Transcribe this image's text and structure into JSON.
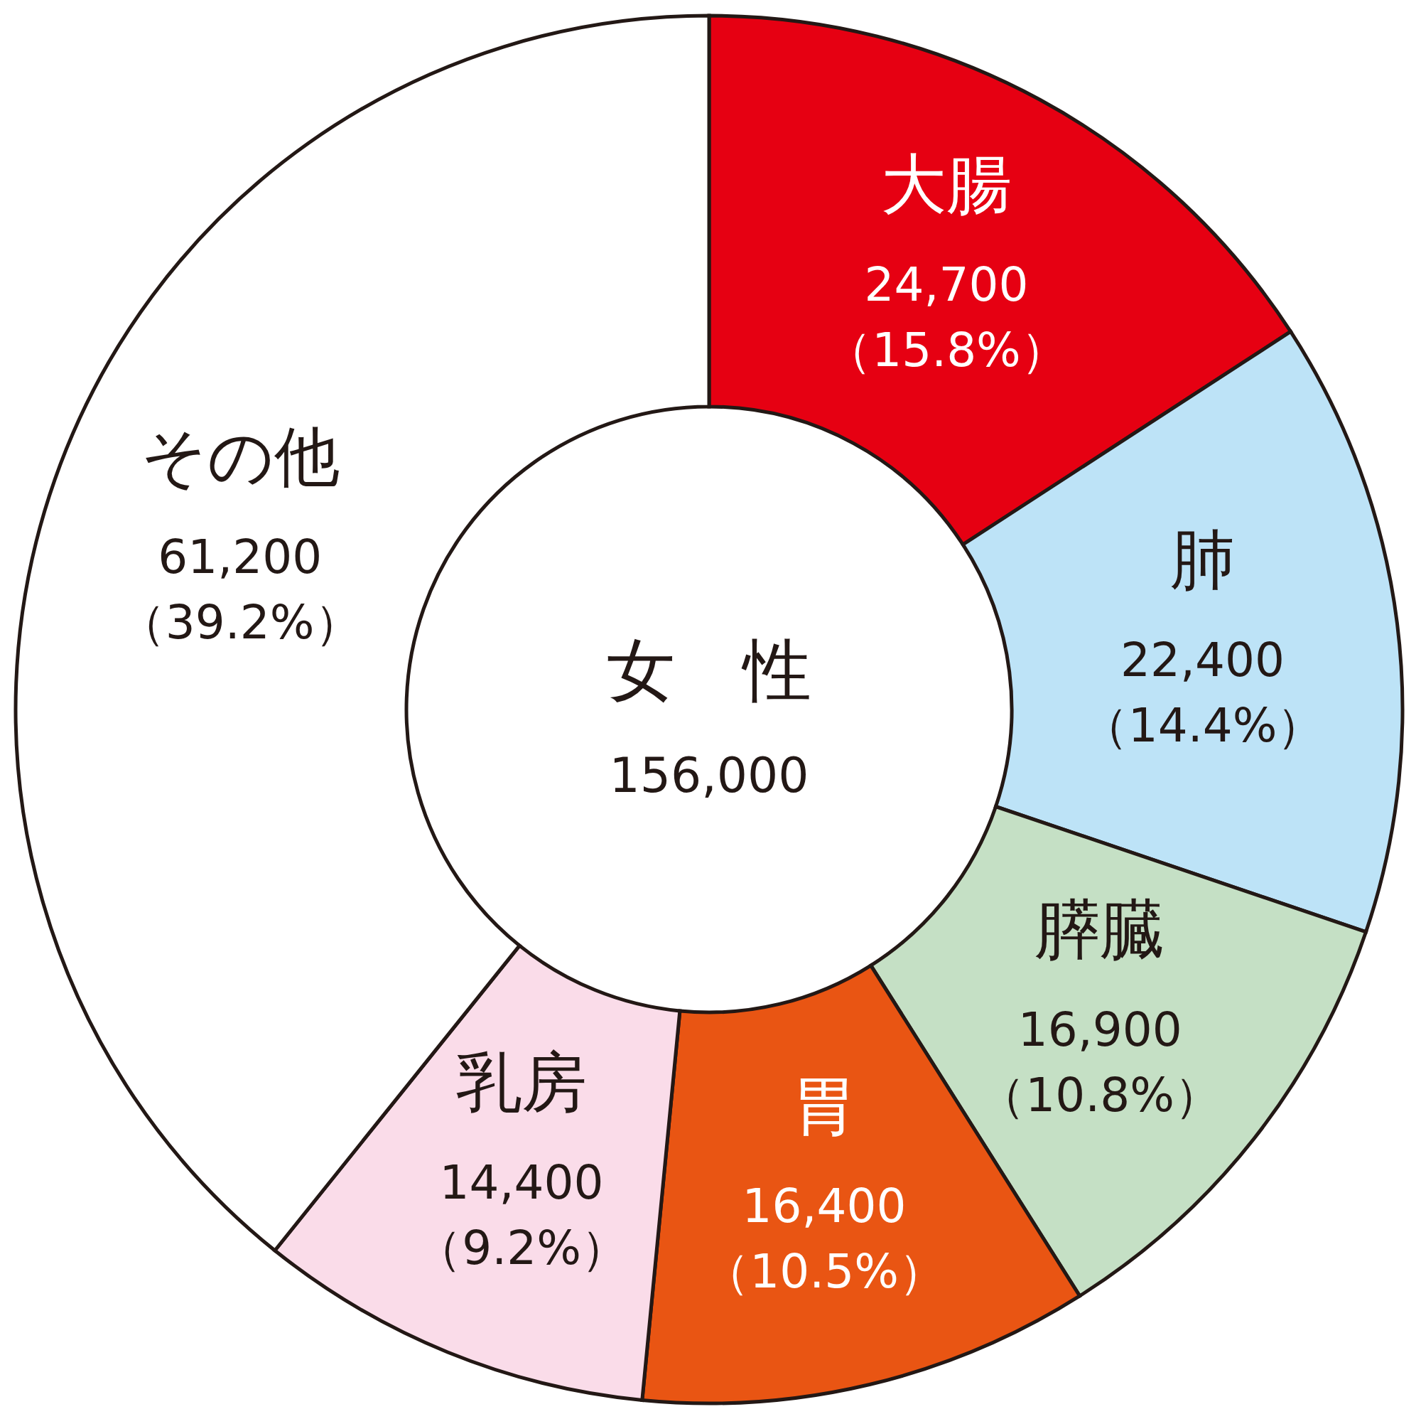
{
  "chart_data": {
    "type": "donut",
    "title": "女　性",
    "subtitle": "156,000",
    "categories": [
      "大腸",
      "肺",
      "膵臓",
      "胃",
      "乳房",
      "その他"
    ],
    "values": [
      24700,
      22400,
      16900,
      16400,
      14400,
      61200
    ],
    "colors": [
      "#e60012",
      "#bde3f7",
      "#c5e0c5",
      "#e95513",
      "#fadce9",
      "#ffffff"
    ],
    "value_labels": [
      "24,700\n（15.8%）",
      "22,400\n（14.4%）",
      "16,900\n（10.8%）",
      "16,400\n（10.5%）",
      "14,400\n（9.2%）",
      "61,200\n（39.2%）"
    ]
  }
}
